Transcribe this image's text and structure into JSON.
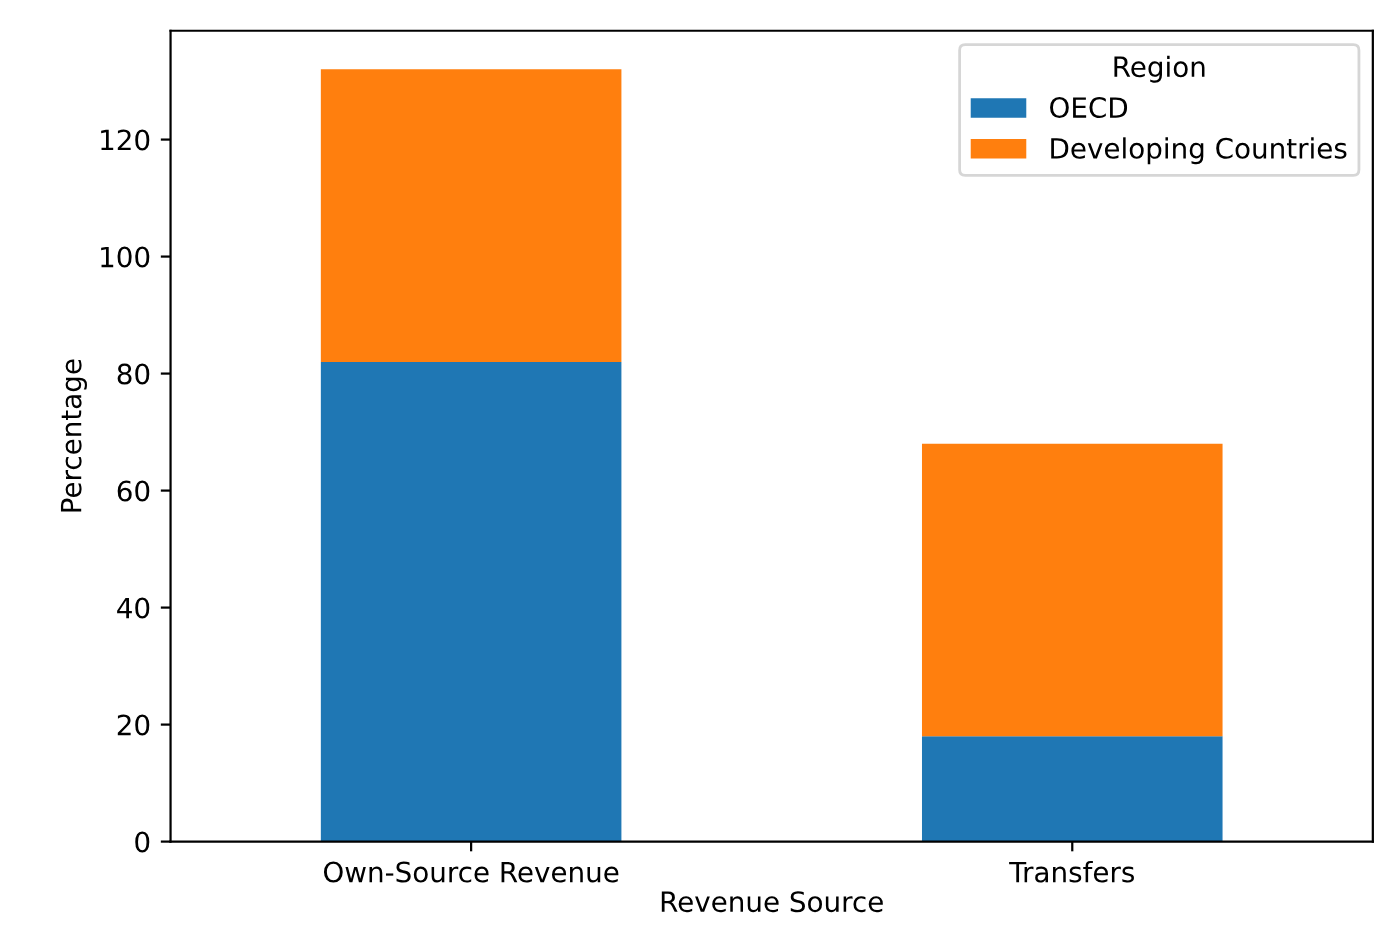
{
  "chart_data": {
    "type": "bar",
    "stacked": true,
    "xlabel": "Revenue Source",
    "ylabel": "Percentage",
    "legend_title": "Region",
    "legend": "top right",
    "categories": [
      "Own-Source Revenue",
      "Transfers"
    ],
    "series": [
      {
        "name": "OECD",
        "color": "#1f77b4",
        "values": [
          82,
          18
        ]
      },
      {
        "name": "Developing Countries",
        "color": "#ff7f0e",
        "values": [
          50,
          50
        ]
      }
    ],
    "ylim": [
      0,
      138.6
    ],
    "yticks": [
      0,
      20,
      40,
      60,
      80,
      100,
      120
    ],
    "grid": false
  }
}
